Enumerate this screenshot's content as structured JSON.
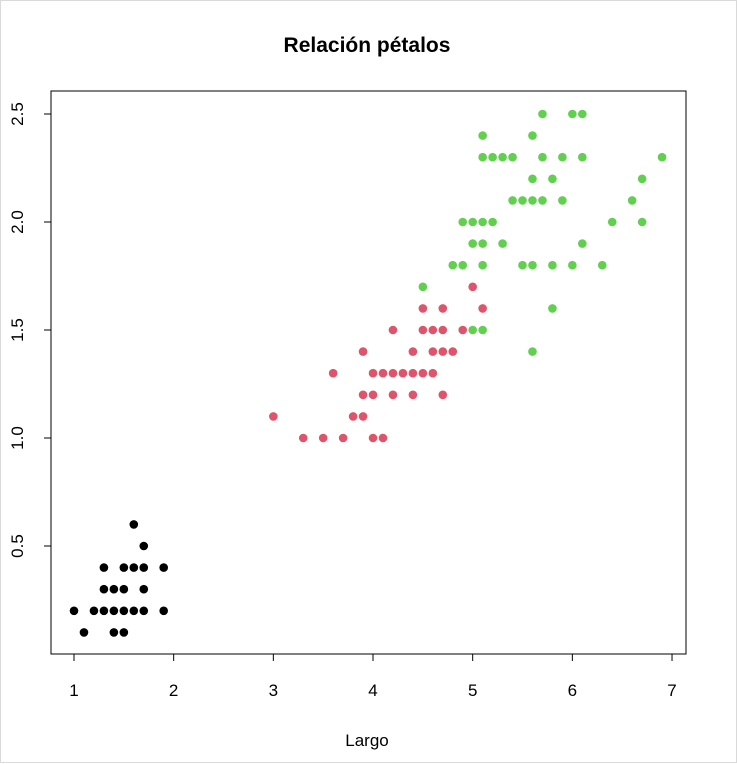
{
  "chart_data": {
    "type": "scatter",
    "title": "Relación pétalos",
    "xlabel": "Largo",
    "ylabel": "",
    "xlim": [
      1,
      7
    ],
    "ylim": [
      0.1,
      2.5
    ],
    "x_ticks": [
      "1",
      "2",
      "3",
      "4",
      "5",
      "6",
      "7"
    ],
    "y_ticks": [
      "0.5",
      "1.0",
      "1.5",
      "2.0",
      "2.5"
    ],
    "grid": false,
    "legend": "none",
    "series": [
      {
        "color": "#000000",
        "points": [
          [
            1.0,
            0.2
          ],
          [
            1.1,
            0.1
          ],
          [
            1.2,
            0.2
          ],
          [
            1.3,
            0.2
          ],
          [
            1.3,
            0.3
          ],
          [
            1.3,
            0.4
          ],
          [
            1.4,
            0.2
          ],
          [
            1.4,
            0.3
          ],
          [
            1.4,
            0.1
          ],
          [
            1.5,
            0.2
          ],
          [
            1.5,
            0.1
          ],
          [
            1.5,
            0.3
          ],
          [
            1.5,
            0.4
          ],
          [
            1.6,
            0.2
          ],
          [
            1.6,
            0.4
          ],
          [
            1.6,
            0.6
          ],
          [
            1.7,
            0.2
          ],
          [
            1.7,
            0.3
          ],
          [
            1.7,
            0.4
          ],
          [
            1.7,
            0.5
          ],
          [
            1.9,
            0.2
          ],
          [
            1.9,
            0.4
          ]
        ]
      },
      {
        "color": "#df536b",
        "points": [
          [
            3.0,
            1.1
          ],
          [
            3.3,
            1.0
          ],
          [
            3.5,
            1.0
          ],
          [
            3.6,
            1.3
          ],
          [
            3.7,
            1.0
          ],
          [
            3.8,
            1.1
          ],
          [
            3.9,
            1.1
          ],
          [
            3.9,
            1.2
          ],
          [
            3.9,
            1.4
          ],
          [
            4.0,
            1.0
          ],
          [
            4.0,
            1.2
          ],
          [
            4.0,
            1.3
          ],
          [
            4.1,
            1.0
          ],
          [
            4.1,
            1.3
          ],
          [
            4.2,
            1.2
          ],
          [
            4.2,
            1.3
          ],
          [
            4.2,
            1.5
          ],
          [
            4.3,
            1.3
          ],
          [
            4.4,
            1.2
          ],
          [
            4.4,
            1.3
          ],
          [
            4.4,
            1.4
          ],
          [
            4.5,
            1.3
          ],
          [
            4.5,
            1.5
          ],
          [
            4.5,
            1.6
          ],
          [
            4.6,
            1.3
          ],
          [
            4.6,
            1.4
          ],
          [
            4.6,
            1.5
          ],
          [
            4.7,
            1.2
          ],
          [
            4.7,
            1.4
          ],
          [
            4.7,
            1.5
          ],
          [
            4.7,
            1.6
          ],
          [
            4.8,
            1.4
          ],
          [
            4.9,
            1.5
          ],
          [
            5.0,
            1.7
          ],
          [
            5.1,
            1.6
          ]
        ]
      },
      {
        "color": "#61d04f",
        "points": [
          [
            4.5,
            1.7
          ],
          [
            4.8,
            1.8
          ],
          [
            4.9,
            1.8
          ],
          [
            4.9,
            2.0
          ],
          [
            5.0,
            1.9
          ],
          [
            5.0,
            2.0
          ],
          [
            5.0,
            1.5
          ],
          [
            5.1,
            1.5
          ],
          [
            5.1,
            1.8
          ],
          [
            5.1,
            1.9
          ],
          [
            5.1,
            2.0
          ],
          [
            5.1,
            2.3
          ],
          [
            5.1,
            2.4
          ],
          [
            5.2,
            2.0
          ],
          [
            5.2,
            2.3
          ],
          [
            5.3,
            1.9
          ],
          [
            5.3,
            2.3
          ],
          [
            5.4,
            2.1
          ],
          [
            5.4,
            2.3
          ],
          [
            5.5,
            1.8
          ],
          [
            5.5,
            2.1
          ],
          [
            5.6,
            1.4
          ],
          [
            5.6,
            1.8
          ],
          [
            5.6,
            2.1
          ],
          [
            5.6,
            2.2
          ],
          [
            5.6,
            2.4
          ],
          [
            5.7,
            2.1
          ],
          [
            5.7,
            2.3
          ],
          [
            5.7,
            2.5
          ],
          [
            5.8,
            1.6
          ],
          [
            5.8,
            1.8
          ],
          [
            5.8,
            2.2
          ],
          [
            5.9,
            2.1
          ],
          [
            5.9,
            2.3
          ],
          [
            6.0,
            1.8
          ],
          [
            6.0,
            2.5
          ],
          [
            6.1,
            1.9
          ],
          [
            6.1,
            2.3
          ],
          [
            6.1,
            2.5
          ],
          [
            6.3,
            1.8
          ],
          [
            6.4,
            2.0
          ],
          [
            6.6,
            2.1
          ],
          [
            6.7,
            2.0
          ],
          [
            6.7,
            2.2
          ],
          [
            6.9,
            2.3
          ]
        ]
      }
    ]
  }
}
